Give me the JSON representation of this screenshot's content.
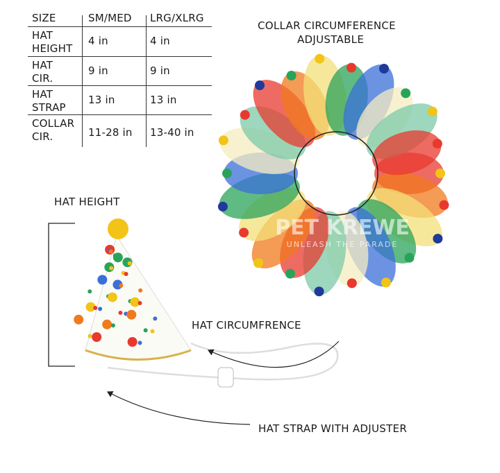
{
  "size_table": {
    "headers": [
      "SIZE",
      "SM/MED",
      "LRG/XLRG"
    ],
    "rows": [
      {
        "label": [
          "HAT",
          "HEIGHT"
        ],
        "sm_med": "4 in",
        "lrg_xlrg": "4 in"
      },
      {
        "label": [
          "HAT",
          "CIR."
        ],
        "sm_med": "9 in",
        "lrg_xlrg": "9 in"
      },
      {
        "label": [
          "HAT",
          "STRAP"
        ],
        "sm_med": "13 in",
        "lrg_xlrg": "13 in"
      },
      {
        "label": [
          "COLLAR",
          "CIR."
        ],
        "sm_med": "11-28 in",
        "lrg_xlrg": "13-40 in"
      }
    ]
  },
  "callouts": {
    "collar_line1": "COLLAR CIRCUMFERENCE",
    "collar_line2": "ADJUSTABLE",
    "hat_height": "HAT HEIGHT",
    "hat_circumference": "HAT CIRCUMFRENCE",
    "hat_strap": "HAT STRAP WITH ADJUSTER"
  },
  "watermark": {
    "brand": "PET KREWE",
    "tagline": "UNLEASH THE PARADE"
  },
  "colors": {
    "petals": [
      "#e8392f",
      "#f07a1e",
      "#f3e07a",
      "#2aa35a",
      "#3a6fd8",
      "#f5ecc0",
      "#7cc9a8"
    ],
    "pom_gold": "#f2c417",
    "line": "#222222"
  }
}
